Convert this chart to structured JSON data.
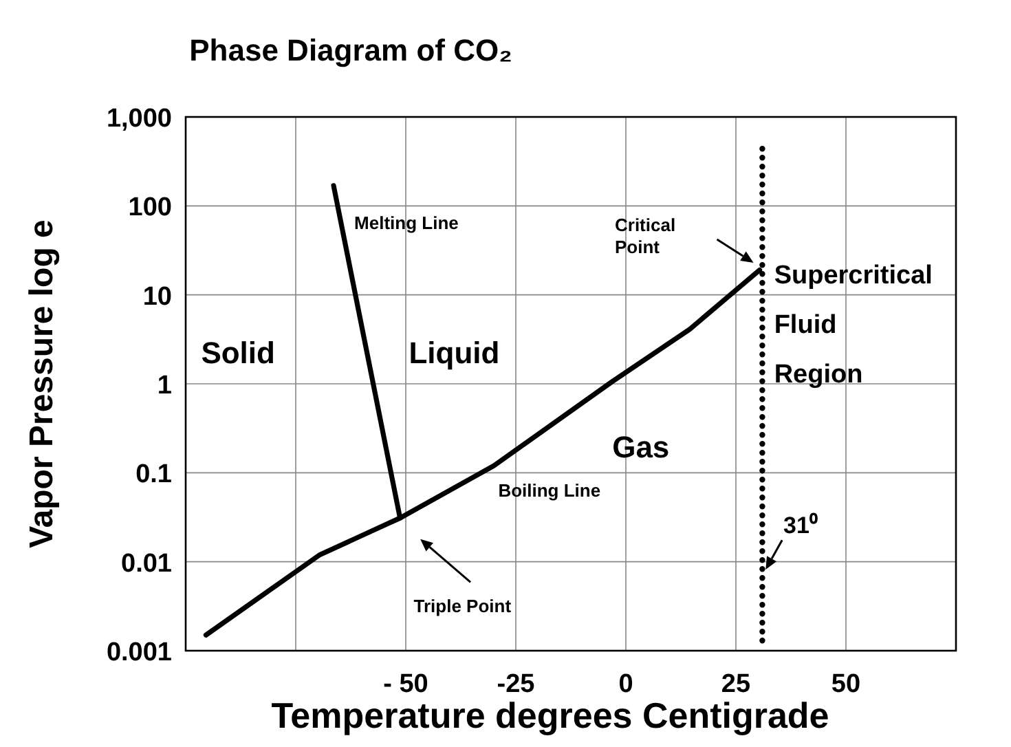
{
  "chart_data": {
    "type": "line",
    "title": "Phase Diagram of CO₂",
    "xlabel": "Temperature degrees Centigrade",
    "ylabel": "Vapor Pressure log e",
    "xlim": [
      -100,
      75
    ],
    "xticks": [
      {
        "value": -75,
        "label": null
      },
      {
        "value": -50,
        "label": "- 50"
      },
      -25,
      0,
      25,
      50
    ],
    "ylim": [
      0.001,
      1000
    ],
    "yticks": [
      0.001,
      0.01,
      0.1,
      1,
      10,
      100,
      {
        "value": 1000,
        "label": "1,000"
      }
    ],
    "log": "y",
    "grid": true,
    "line_style": "solid",
    "series": [
      {
        "name": "Melting Line",
        "color": "#000000",
        "x": [
          -66.4,
          -51.3
        ],
        "values": [
          169,
          0.031
        ]
      },
      {
        "name": "Boiling Line",
        "color": "#000000",
        "x": [
          -95.4,
          -69.5,
          -51.3,
          -30,
          -3.1,
          14.5,
          30.4
        ],
        "values": [
          0.0015,
          0.012,
          0.031,
          0.12,
          1.06,
          4.1,
          19
        ]
      },
      {
        "color": "#000000",
        "line_style": "dotted",
        "x": [
          31,
          31
        ],
        "values": [
          440,
          0.0011
        ]
      }
    ],
    "annotations": [
      "Solid",
      "Liquid",
      "Gas",
      "Supercritical Fluid Region",
      "Critical Point",
      "Triple Point",
      {
        "text": "31⁰",
        "x": 31,
        "y": 0.007
      }
    ]
  }
}
